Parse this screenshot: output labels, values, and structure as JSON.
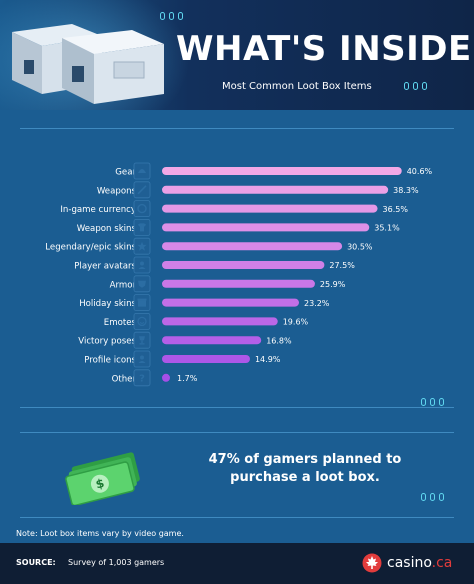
{
  "header": {
    "title": "WHAT'S INSIDE?",
    "subtitle": "Most Common Loot Box Items"
  },
  "chart_data": {
    "type": "bar",
    "orientation": "horizontal",
    "categories": [
      "Gear",
      "Weapons",
      "In-game currency",
      "Weapon skins",
      "Legendary/epic skins",
      "Player avatars",
      "Armor",
      "Holiday skins",
      "Emotes",
      "Victory poses",
      "Profile icons",
      "Other"
    ],
    "values": [
      40.6,
      38.3,
      36.5,
      35.1,
      30.5,
      27.5,
      25.9,
      23.2,
      19.6,
      16.8,
      14.9,
      1.7
    ],
    "value_labels": [
      "40.6%",
      "38.3%",
      "36.5%",
      "35.1%",
      "30.5%",
      "27.5%",
      "25.9%",
      "23.2%",
      "19.6%",
      "16.8%",
      "14.9%",
      "1.7%"
    ],
    "icons": [
      "helmet-icon",
      "sword-icon",
      "coin-icon",
      "shirt-icon",
      "star-icon",
      "avatar-icon",
      "armor-icon",
      "gift-icon",
      "smile-icon",
      "trophy-icon",
      "profile-icon",
      "question-icon"
    ],
    "colors": {
      "start": "#f2a8e6",
      "end": "#a64fe8"
    },
    "xlim": [
      0,
      42
    ],
    "grid": false,
    "legend": "none"
  },
  "promo": {
    "text": "47% of gamers planned to purchase a loot box.",
    "icon": "cash-icon"
  },
  "note": "Note: Loot box items vary by video game.",
  "footer": {
    "source_label": "SOURCE:",
    "source_text": "Survey of 1,003 gamers",
    "brand_name": "casino",
    "brand_tld": ".ca"
  },
  "colors": {
    "background": "#1b5d92",
    "header": "#12305c",
    "footer": "#0f1e34",
    "accent": "#5fd6ee",
    "brand_red": "#e23c3c"
  }
}
